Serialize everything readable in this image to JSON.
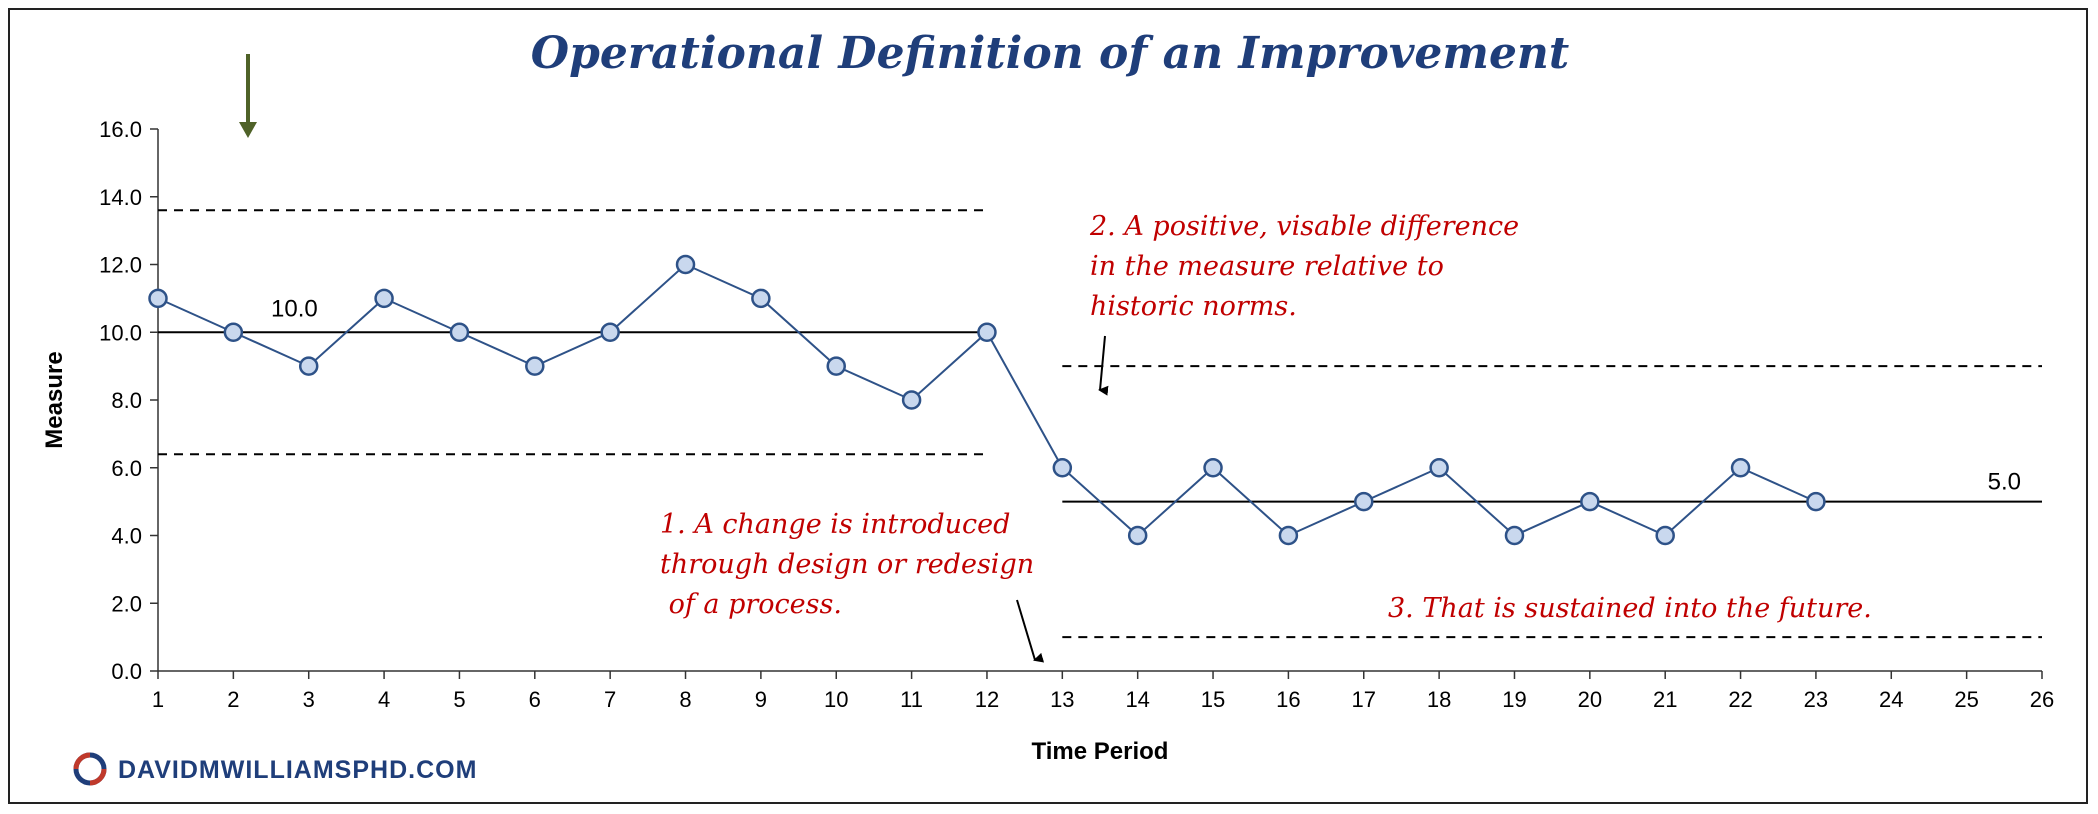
{
  "chart_data": {
    "type": "line",
    "title": "Operational Definition of an Improvement",
    "xlabel": "Time Period",
    "ylabel": "Measure",
    "ylim": [
      0,
      16
    ],
    "xlim": [
      1,
      26
    ],
    "x_ticks": [
      1,
      2,
      3,
      4,
      5,
      6,
      7,
      8,
      9,
      10,
      11,
      12,
      13,
      14,
      15,
      16,
      17,
      18,
      19,
      20,
      21,
      22,
      23,
      24,
      25,
      26
    ],
    "y_ticks": [
      "0.0",
      "2.0",
      "4.0",
      "6.0",
      "8.0",
      "10.0",
      "12.0",
      "14.0",
      "16.0"
    ],
    "grid": false,
    "series": [
      {
        "x": [
          1,
          2,
          3,
          4,
          5,
          6,
          7,
          8,
          9,
          10,
          11,
          12,
          13,
          14,
          15,
          16,
          17,
          18,
          19,
          20,
          21,
          22,
          23
        ],
        "values": [
          11,
          10,
          9,
          11,
          10,
          9,
          10,
          12,
          11,
          9,
          8,
          10,
          6,
          4,
          6,
          4,
          5,
          6,
          4,
          5,
          4,
          6,
          5
        ]
      }
    ],
    "reference_lines": [
      {
        "kind": "mean",
        "y": 10.0,
        "x_from": 1,
        "x_to": 12,
        "label": "10.0"
      },
      {
        "kind": "upper-limit",
        "y": 13.6,
        "x_from": 1,
        "x_to": 12
      },
      {
        "kind": "lower-limit",
        "y": 6.4,
        "x_from": 1,
        "x_to": 12
      },
      {
        "kind": "mean",
        "y": 5.0,
        "x_from": 13,
        "x_to": 26,
        "label": "5.0"
      },
      {
        "kind": "upper-limit",
        "y": 9.0,
        "x_from": 13,
        "x_to": 26
      },
      {
        "kind": "lower-limit",
        "y": 1.0,
        "x_from": 13,
        "x_to": 26
      }
    ],
    "annotations": [
      {
        "lines": [
          "1. A change is introduced",
          "through design or redesign",
          " of a process."
        ]
      },
      {
        "lines": [
          "2. A positive, visable difference",
          "in the measure relative to",
          "historic norms."
        ]
      },
      {
        "lines": [
          "3. That is sustained into the future."
        ]
      }
    ],
    "colors": {
      "line": "#2e5288",
      "marker_fill": "#c9d8ee",
      "marker_stroke": "#2e5288",
      "annotation": "#c00000",
      "title": "#1f3e7a",
      "arrow_green": "#4f6228"
    }
  },
  "brand": {
    "text": "DAVIDMWILLIAMSPHD.COM",
    "icon": "swirl-logo-icon"
  }
}
